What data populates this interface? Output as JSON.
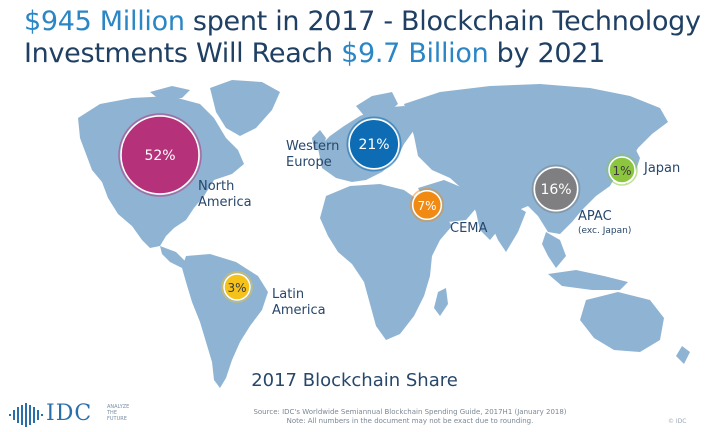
{
  "headline": {
    "line1": [
      {
        "text": "$945 Million",
        "accent": true
      },
      {
        "text": " spent in 2017 - Blockchain Technology",
        "accent": false
      }
    ],
    "line2": [
      {
        "text": "Investments Will Reach ",
        "accent": false
      },
      {
        "text": "$9.7 Billion",
        "accent": true
      },
      {
        "text": " by 2021",
        "accent": false
      }
    ]
  },
  "chart_data": {
    "type": "bubble-map",
    "title": "2017 Blockchain Share",
    "series": [
      {
        "region": "North America",
        "label": "52%",
        "value": 52,
        "color": "#b5317a"
      },
      {
        "region": "Western Europe",
        "label": "21%",
        "value": 21,
        "color": "#0d6cb3"
      },
      {
        "region": "CEMA",
        "label": "7%",
        "value": 7,
        "color": "#f08a12"
      },
      {
        "region": "APAC",
        "note": "(exc. Japan)",
        "label": "16%",
        "value": 16,
        "color": "#7f7f82"
      },
      {
        "region": "Japan",
        "label": "1%",
        "value": 1,
        "color": "#8cc63f"
      },
      {
        "region": "Latin America",
        "label": "3%",
        "value": 3,
        "color": "#f5c21b"
      }
    ]
  },
  "footer": {
    "logo_text": "IDC",
    "logo_tagline": "ANALYZE THE FUTURE",
    "source_line1": "Source: IDC's Worldwide Semiannual Blockchain Spending Guide, 2017H1 (January 2018)",
    "source_line2": "Note: All numbers in the document may not be exact due to rounding.",
    "copyright": "© IDC"
  },
  "colors": {
    "map": "#8fb4d3",
    "headline_dark": "#1f3f63",
    "headline_accent": "#2a86c4"
  }
}
